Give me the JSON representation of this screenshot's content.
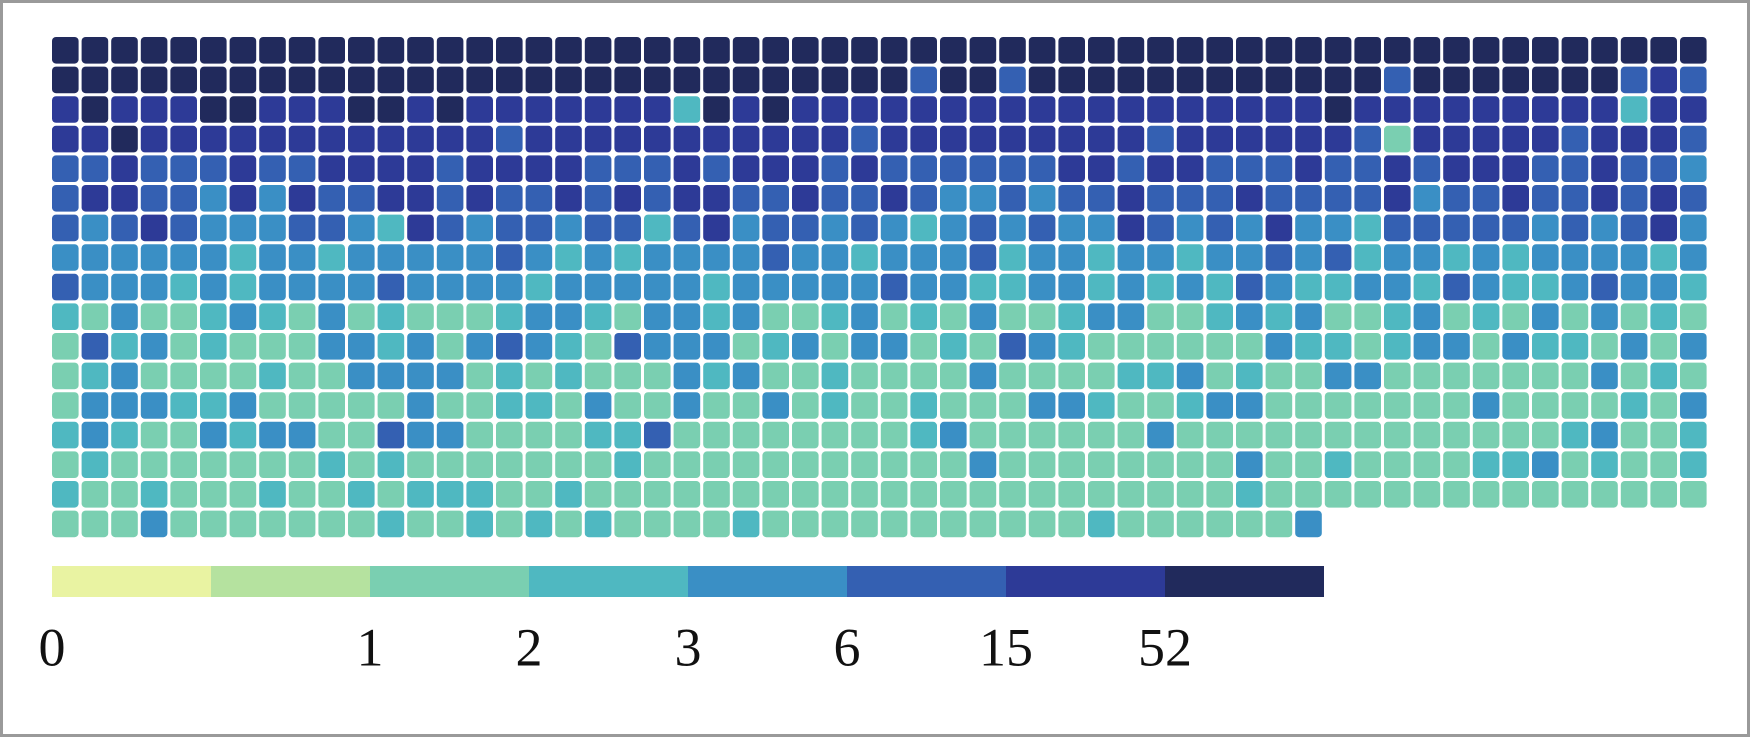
{
  "chart_data": {
    "type": "heatmap",
    "legend": {
      "colors": [
        "#e9f3a2",
        "#b5e29f",
        "#7acfb1",
        "#4fb8c1",
        "#3a8fc5",
        "#3460b2",
        "#2d3a97",
        "#212a5c"
      ],
      "ticks": [
        0,
        null,
        1,
        2,
        3,
        6,
        15,
        52,
        null
      ]
    },
    "values": [
      [
        7,
        7,
        7,
        7,
        7,
        7,
        7,
        7,
        7,
        7,
        7,
        7,
        7,
        7,
        7,
        7,
        7,
        7,
        7,
        7,
        7,
        7,
        7,
        7,
        7,
        7,
        7,
        7,
        7,
        7,
        7,
        7,
        7,
        7,
        7,
        7,
        7,
        7,
        7,
        7,
        7,
        7,
        7,
        7,
        7,
        7,
        7,
        7,
        7,
        7,
        7,
        7,
        7,
        7,
        7,
        7
      ],
      [
        7,
        7,
        7,
        7,
        7,
        7,
        7,
        7,
        7,
        7,
        7,
        7,
        7,
        7,
        7,
        7,
        7,
        7,
        7,
        7,
        7,
        7,
        7,
        7,
        7,
        7,
        7,
        7,
        7,
        5,
        7,
        7,
        5,
        7,
        7,
        7,
        7,
        7,
        7,
        7,
        7,
        7,
        7,
        7,
        7,
        5,
        7,
        7,
        7,
        7,
        7,
        7,
        7,
        5,
        6,
        5
      ],
      [
        6,
        7,
        6,
        6,
        6,
        7,
        7,
        6,
        6,
        6,
        7,
        7,
        6,
        7,
        6,
        6,
        6,
        6,
        6,
        6,
        6,
        3,
        7,
        6,
        7,
        6,
        6,
        6,
        6,
        6,
        6,
        6,
        6,
        6,
        6,
        6,
        6,
        6,
        6,
        6,
        6,
        6,
        6,
        7,
        6,
        6,
        6,
        6,
        6,
        6,
        6,
        6,
        6,
        3,
        6,
        6
      ],
      [
        6,
        6,
        7,
        6,
        6,
        6,
        6,
        6,
        6,
        6,
        6,
        6,
        6,
        6,
        6,
        5,
        6,
        6,
        6,
        6,
        6,
        6,
        6,
        6,
        6,
        6,
        6,
        5,
        6,
        6,
        6,
        6,
        6,
        6,
        6,
        6,
        6,
        5,
        6,
        6,
        6,
        6,
        6,
        6,
        5,
        2,
        6,
        6,
        6,
        6,
        6,
        5,
        6,
        6,
        6,
        5
      ],
      [
        5,
        5,
        6,
        5,
        5,
        5,
        6,
        5,
        5,
        6,
        6,
        6,
        6,
        5,
        6,
        6,
        6,
        6,
        5,
        5,
        5,
        6,
        5,
        6,
        6,
        6,
        5,
        6,
        5,
        5,
        5,
        5,
        5,
        5,
        6,
        6,
        5,
        6,
        6,
        5,
        5,
        5,
        6,
        5,
        5,
        6,
        5,
        6,
        6,
        6,
        5,
        5,
        6,
        5,
        5,
        4
      ],
      [
        5,
        6,
        6,
        5,
        5,
        4,
        6,
        4,
        6,
        5,
        5,
        6,
        6,
        5,
        6,
        5,
        5,
        6,
        5,
        6,
        5,
        6,
        6,
        5,
        5,
        6,
        5,
        5,
        6,
        5,
        4,
        4,
        5,
        4,
        5,
        5,
        6,
        5,
        5,
        5,
        6,
        5,
        5,
        5,
        5,
        6,
        4,
        5,
        5,
        6,
        5,
        5,
        6,
        5,
        6,
        5
      ],
      [
        5,
        4,
        5,
        6,
        5,
        4,
        4,
        4,
        5,
        5,
        4,
        3,
        6,
        5,
        4,
        5,
        5,
        4,
        5,
        5,
        3,
        5,
        6,
        4,
        5,
        5,
        4,
        5,
        4,
        3,
        4,
        5,
        4,
        5,
        4,
        4,
        6,
        5,
        4,
        5,
        4,
        6,
        4,
        4,
        3,
        5,
        5,
        5,
        5,
        5,
        4,
        5,
        4,
        5,
        6,
        4
      ],
      [
        4,
        4,
        4,
        4,
        4,
        4,
        3,
        4,
        4,
        3,
        4,
        4,
        4,
        4,
        4,
        5,
        4,
        3,
        4,
        3,
        4,
        4,
        4,
        4,
        5,
        4,
        4,
        3,
        4,
        4,
        4,
        5,
        3,
        4,
        4,
        3,
        4,
        4,
        3,
        4,
        4,
        5,
        4,
        5,
        3,
        4,
        4,
        3,
        4,
        3,
        4,
        4,
        4,
        4,
        3,
        4
      ],
      [
        5,
        4,
        4,
        4,
        3,
        4,
        3,
        4,
        4,
        4,
        4,
        5,
        4,
        4,
        4,
        4,
        3,
        4,
        4,
        4,
        4,
        4,
        3,
        4,
        4,
        4,
        4,
        4,
        5,
        4,
        4,
        3,
        3,
        4,
        4,
        3,
        4,
        3,
        4,
        3,
        5,
        4,
        3,
        3,
        4,
        4,
        3,
        5,
        4,
        3,
        3,
        4,
        5,
        4,
        4,
        3
      ],
      [
        3,
        2,
        4,
        2,
        2,
        3,
        4,
        3,
        2,
        4,
        2,
        3,
        2,
        2,
        2,
        3,
        4,
        4,
        3,
        2,
        4,
        4,
        3,
        4,
        2,
        2,
        3,
        4,
        2,
        3,
        2,
        4,
        2,
        2,
        3,
        4,
        4,
        2,
        2,
        3,
        4,
        3,
        4,
        2,
        2,
        3,
        4,
        2,
        3,
        2,
        4,
        2,
        4,
        2,
        3,
        2
      ],
      [
        2,
        5,
        3,
        4,
        2,
        3,
        2,
        2,
        2,
        4,
        4,
        3,
        4,
        2,
        4,
        5,
        4,
        3,
        2,
        5,
        4,
        4,
        4,
        2,
        3,
        4,
        2,
        4,
        4,
        2,
        3,
        2,
        5,
        4,
        3,
        2,
        2,
        2,
        2,
        2,
        2,
        4,
        3,
        3,
        2,
        3,
        4,
        4,
        2,
        4,
        3,
        3,
        2,
        4,
        2,
        4
      ],
      [
        2,
        3,
        4,
        2,
        2,
        2,
        2,
        3,
        2,
        2,
        4,
        4,
        4,
        4,
        2,
        3,
        2,
        3,
        2,
        2,
        2,
        4,
        3,
        4,
        2,
        2,
        3,
        2,
        2,
        2,
        2,
        4,
        2,
        2,
        2,
        2,
        3,
        3,
        4,
        2,
        3,
        2,
        2,
        4,
        4,
        2,
        2,
        2,
        2,
        2,
        2,
        2,
        4,
        2,
        3,
        2
      ],
      [
        2,
        4,
        4,
        4,
        3,
        3,
        4,
        2,
        2,
        2,
        2,
        2,
        4,
        2,
        2,
        3,
        3,
        2,
        4,
        2,
        2,
        4,
        2,
        2,
        4,
        2,
        3,
        2,
        2,
        3,
        2,
        2,
        2,
        4,
        4,
        3,
        2,
        2,
        3,
        4,
        4,
        2,
        2,
        2,
        2,
        2,
        2,
        2,
        4,
        2,
        2,
        2,
        2,
        3,
        2,
        4
      ],
      [
        3,
        4,
        3,
        2,
        2,
        4,
        3,
        4,
        4,
        2,
        2,
        5,
        4,
        4,
        2,
        2,
        2,
        2,
        3,
        3,
        5,
        2,
        2,
        2,
        2,
        2,
        2,
        2,
        2,
        3,
        4,
        2,
        2,
        2,
        2,
        2,
        2,
        4,
        2,
        2,
        2,
        2,
        2,
        2,
        2,
        2,
        2,
        2,
        2,
        2,
        2,
        3,
        4,
        2,
        2,
        3
      ],
      [
        2,
        3,
        2,
        2,
        2,
        2,
        2,
        2,
        2,
        3,
        2,
        3,
        2,
        2,
        2,
        2,
        2,
        2,
        2,
        3,
        2,
        2,
        2,
        2,
        2,
        2,
        2,
        2,
        2,
        2,
        2,
        4,
        2,
        2,
        2,
        2,
        2,
        2,
        2,
        2,
        4,
        2,
        2,
        3,
        2,
        2,
        2,
        2,
        3,
        3,
        4,
        2,
        3,
        2,
        2,
        3
      ],
      [
        3,
        2,
        2,
        3,
        2,
        2,
        2,
        3,
        2,
        2,
        3,
        2,
        3,
        3,
        3,
        2,
        2,
        3,
        2,
        2,
        2,
        2,
        2,
        2,
        2,
        2,
        2,
        2,
        2,
        2,
        2,
        2,
        2,
        2,
        2,
        2,
        2,
        2,
        2,
        2,
        3,
        2,
        2,
        2,
        2,
        2,
        2,
        2,
        2,
        2,
        2,
        2,
        2,
        2,
        2,
        2
      ],
      [
        2,
        2,
        2,
        4,
        2,
        2,
        2,
        2,
        2,
        2,
        2,
        3,
        2,
        2,
        3,
        2,
        3,
        2,
        3,
        2,
        2,
        2,
        2,
        3,
        2,
        2,
        2,
        2,
        2,
        2,
        2,
        2,
        2,
        2,
        2,
        3,
        2,
        2,
        2,
        2,
        2,
        2,
        4
      ]
    ]
  }
}
